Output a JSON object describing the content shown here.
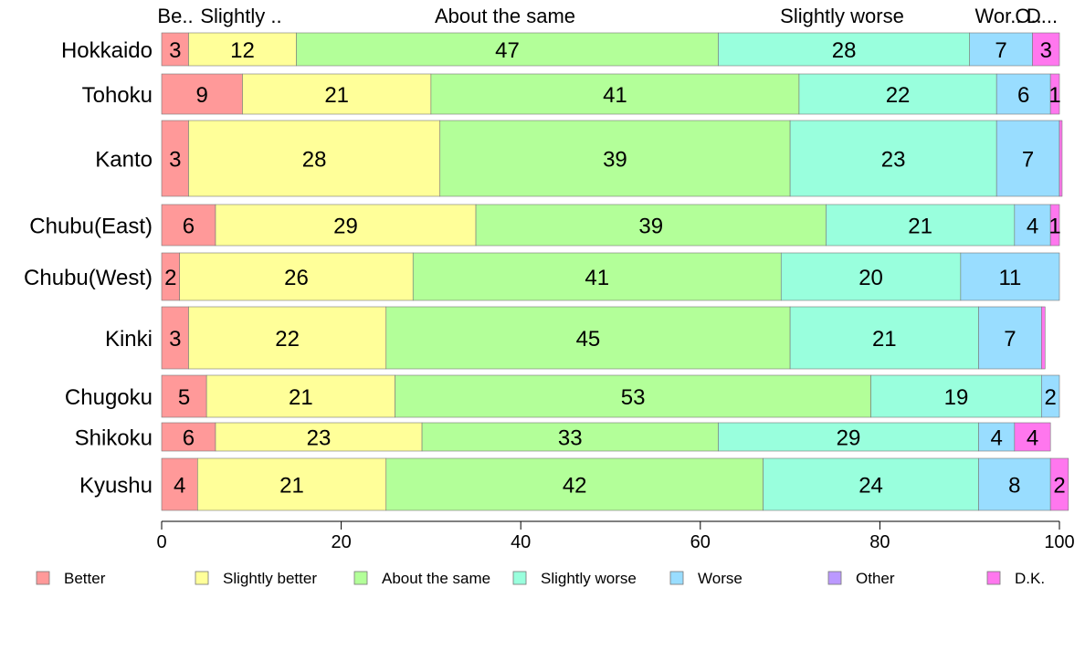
{
  "chart_data": {
    "type": "bar",
    "orientation": "horizontal",
    "stacked": true,
    "title": "",
    "xlabel": "",
    "ylabel": "",
    "xlim": [
      0,
      100
    ],
    "x_ticks": [
      "0",
      "20",
      "40",
      "60",
      "80",
      "100"
    ],
    "grid": false,
    "legend_position": "bottom",
    "top_labels": [
      "Be..",
      "Slightly ..",
      "About the same",
      "Slightly worse",
      "Wor..",
      "O..",
      "D..."
    ],
    "categories": [
      "Hokkaido",
      "Tohoku",
      "Kanto",
      "Chubu(East)",
      "Chubu(West)",
      "Kinki",
      "Chugoku",
      "Shikoku",
      "Kyushu"
    ],
    "series": [
      {
        "name": "Better",
        "color": "#ff9999",
        "values": [
          3,
          9,
          3,
          6,
          2,
          3,
          5,
          6,
          4
        ]
      },
      {
        "name": "Slightly better",
        "color": "#ffff99",
        "values": [
          12,
          21,
          28,
          29,
          26,
          22,
          21,
          23,
          21
        ]
      },
      {
        "name": "About the same",
        "color": "#b3ff99",
        "values": [
          47,
          41,
          39,
          39,
          41,
          45,
          53,
          33,
          42
        ]
      },
      {
        "name": "Slightly worse",
        "color": "#99ffdd",
        "values": [
          28,
          22,
          23,
          21,
          20,
          21,
          19,
          29,
          24
        ]
      },
      {
        "name": "Worse",
        "color": "#99ddff",
        "values": [
          7,
          6,
          7,
          4,
          11,
          7,
          2,
          4,
          8
        ]
      },
      {
        "name": "Other",
        "color": "#bb99ff",
        "values": [
          0,
          0,
          0,
          0,
          0,
          0,
          0,
          0,
          0
        ]
      },
      {
        "name": "D.K.",
        "color": "#ff77ee",
        "values": [
          3,
          1,
          0.3,
          1,
          0,
          0.4,
          0,
          4,
          2
        ]
      }
    ],
    "value_labels": [
      [
        "3",
        "12",
        "47",
        "28",
        "7",
        "",
        "3"
      ],
      [
        "9",
        "21",
        "41",
        "22",
        "6",
        "",
        "1"
      ],
      [
        "3",
        "28",
        "39",
        "23",
        "7",
        "",
        ""
      ],
      [
        "6",
        "29",
        "39",
        "21",
        "4",
        "",
        "1"
      ],
      [
        "2",
        "26",
        "41",
        "20",
        "11",
        "",
        ""
      ],
      [
        "3",
        "22",
        "45",
        "21",
        "7",
        "",
        ""
      ],
      [
        "5",
        "21",
        "53",
        "19",
        "2",
        "",
        ""
      ],
      [
        "6",
        "23",
        "33",
        "29",
        "4",
        "",
        "4"
      ],
      [
        "4",
        "21",
        "42",
        "24",
        "8",
        "",
        "2"
      ]
    ]
  }
}
